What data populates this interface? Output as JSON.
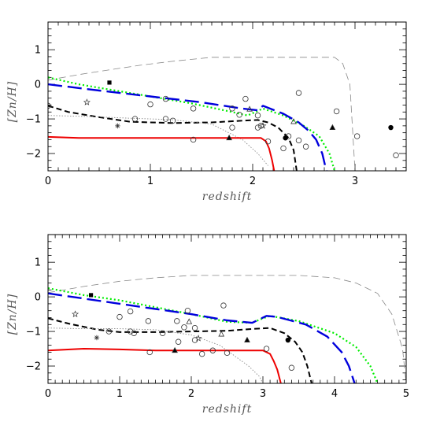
{
  "chart_data": [
    {
      "type": "line",
      "xlabel": "redshift",
      "ylabel": "[Zn/H]",
      "xlim": [
        0,
        3.5
      ],
      "ylim": [
        -2.5,
        1.8
      ],
      "x_ticks": [
        0,
        1,
        2,
        3
      ],
      "y_ticks": [
        1,
        0,
        -1,
        -2
      ],
      "x_minor_step": 0.1,
      "y_minor_step": 0.2,
      "grid": false,
      "series": [
        {
          "style": "thin-dash",
          "color": "#888888",
          "x": [
            0,
            0.3,
            0.6,
            0.9,
            1.2,
            1.6,
            2.0,
            2.4,
            2.6,
            2.8,
            2.88,
            2.95,
            3.0
          ],
          "y": [
            0.12,
            0.28,
            0.42,
            0.55,
            0.66,
            0.78,
            0.78,
            0.78,
            0.78,
            0.78,
            0.6,
            0.0,
            -2.5
          ]
        },
        {
          "style": "green-dot",
          "color": "#00ee00",
          "x": [
            0,
            0.3,
            0.7,
            1.0,
            1.4,
            1.8,
            1.95,
            2.1,
            2.3,
            2.5,
            2.65,
            2.75,
            2.8
          ],
          "y": [
            0.2,
            0.0,
            -0.2,
            -0.35,
            -0.55,
            -0.8,
            -0.9,
            -0.7,
            -0.9,
            -1.2,
            -1.5,
            -2.0,
            -2.5
          ]
        },
        {
          "style": "blue-longdash",
          "color": "#0000dd",
          "x": [
            0,
            0.5,
            1.0,
            1.5,
            1.9,
            2.05,
            2.1,
            2.3,
            2.45,
            2.55,
            2.62,
            2.68,
            2.72
          ],
          "y": [
            0.0,
            -0.18,
            -0.35,
            -0.52,
            -0.7,
            -0.75,
            -0.62,
            -0.85,
            -1.1,
            -1.35,
            -1.6,
            -2.0,
            -2.5
          ]
        },
        {
          "style": "black-dash",
          "color": "#000000",
          "x": [
            0,
            0.2,
            0.5,
            0.8,
            1.2,
            1.6,
            1.9,
            2.05,
            2.15,
            2.25,
            2.35,
            2.4,
            2.43
          ],
          "y": [
            -0.62,
            -0.8,
            -0.95,
            -1.08,
            -1.12,
            -1.1,
            -1.05,
            -1.03,
            -1.1,
            -1.25,
            -1.55,
            -1.9,
            -2.5
          ]
        },
        {
          "style": "grey-dot",
          "color": "#888888",
          "x": [
            0,
            0.4,
            0.8,
            1.2,
            1.6,
            1.9,
            2.05,
            2.15
          ],
          "y": [
            -0.9,
            -0.93,
            -0.98,
            -1.02,
            -1.15,
            -1.6,
            -2.0,
            -2.35
          ]
        },
        {
          "style": "red-solid",
          "color": "#ee0000",
          "x": [
            0,
            0.3,
            0.8,
            1.3,
            1.8,
            2.0,
            2.08,
            2.13,
            2.16,
            2.19,
            2.21
          ],
          "y": [
            -1.52,
            -1.55,
            -1.55,
            -1.55,
            -1.55,
            -1.55,
            -1.55,
            -1.65,
            -1.85,
            -2.2,
            -2.5
          ]
        }
      ],
      "points": [
        {
          "marker": "square",
          "x": 0.6,
          "y": 0.05
        },
        {
          "marker": "star",
          "x": 0.38,
          "y": -0.52
        },
        {
          "marker": "asterisk",
          "x": 0.68,
          "y": -1.2
        },
        {
          "marker": "circle-open",
          "x": 0.0,
          "y": -0.62
        },
        {
          "marker": "circle-open",
          "x": 0.85,
          "y": -1.0
        },
        {
          "marker": "circle-open",
          "x": 1.0,
          "y": -0.58
        },
        {
          "marker": "circle-open",
          "x": 1.15,
          "y": -0.42
        },
        {
          "marker": "circle-open",
          "x": 1.15,
          "y": -1.0
        },
        {
          "marker": "circle-open",
          "x": 1.22,
          "y": -1.05
        },
        {
          "marker": "circle-open",
          "x": 1.42,
          "y": -0.7
        },
        {
          "marker": "circle-open",
          "x": 1.42,
          "y": -1.6
        },
        {
          "marker": "circle-open",
          "x": 1.8,
          "y": -0.7
        },
        {
          "marker": "circle-open",
          "x": 1.8,
          "y": -1.25
        },
        {
          "marker": "circle-open",
          "x": 1.87,
          "y": -0.88
        },
        {
          "marker": "circle-open",
          "x": 1.93,
          "y": -0.42
        },
        {
          "marker": "circle-open",
          "x": 2.05,
          "y": -0.9
        },
        {
          "marker": "circle-open",
          "x": 2.05,
          "y": -1.25
        },
        {
          "marker": "circle-open",
          "x": 2.08,
          "y": -1.2
        },
        {
          "marker": "circle-open",
          "x": 2.15,
          "y": -1.65
        },
        {
          "marker": "circle-open",
          "x": 2.3,
          "y": -1.85
        },
        {
          "marker": "circle-open",
          "x": 2.35,
          "y": -1.5
        },
        {
          "marker": "circle-open",
          "x": 2.45,
          "y": -0.25
        },
        {
          "marker": "circle-open",
          "x": 2.45,
          "y": -1.62
        },
        {
          "marker": "circle-open",
          "x": 2.52,
          "y": -1.8
        },
        {
          "marker": "circle-open",
          "x": 2.82,
          "y": -0.78
        },
        {
          "marker": "circle-open",
          "x": 3.02,
          "y": -1.5
        },
        {
          "marker": "circle-open",
          "x": 3.4,
          "y": -2.05
        },
        {
          "marker": "triangle-open",
          "x": 1.97,
          "y": -0.72
        },
        {
          "marker": "triangle-open",
          "x": 2.4,
          "y": -1.08
        },
        {
          "marker": "triangle-filled",
          "x": 1.77,
          "y": -1.55
        },
        {
          "marker": "triangle-filled",
          "x": 2.78,
          "y": -1.25
        },
        {
          "marker": "circle-filled",
          "x": 3.35,
          "y": -1.25
        },
        {
          "marker": "circle-filled",
          "x": 2.32,
          "y": -1.55
        },
        {
          "marker": "star",
          "x": 2.1,
          "y": -1.2
        }
      ]
    },
    {
      "type": "line",
      "xlabel": "redshift",
      "ylabel": "[Zn/H]",
      "xlim": [
        0,
        5
      ],
      "ylim": [
        -2.5,
        1.8
      ],
      "x_ticks": [
        0,
        1,
        2,
        3,
        4,
        5
      ],
      "y_ticks": [
        1,
        0,
        -1,
        -2
      ],
      "x_minor_step": 0.1,
      "y_minor_step": 0.2,
      "grid": false,
      "series": [
        {
          "style": "thin-dash",
          "color": "#888888",
          "x": [
            0,
            0.5,
            1.0,
            1.5,
            2.0,
            2.5,
            3.0,
            3.5,
            4.0,
            4.3,
            4.6,
            4.8,
            4.95,
            5.0
          ],
          "y": [
            0.12,
            0.3,
            0.45,
            0.55,
            0.62,
            0.62,
            0.62,
            0.62,
            0.55,
            0.4,
            0.1,
            -0.5,
            -1.5,
            -2.5
          ]
        },
        {
          "style": "green-dot",
          "color": "#00ee00",
          "x": [
            0,
            0.5,
            1.0,
            1.5,
            2.0,
            2.5,
            2.85,
            3.0,
            3.1,
            3.5,
            4.0,
            4.3,
            4.5,
            4.6
          ],
          "y": [
            0.25,
            0.05,
            -0.1,
            -0.3,
            -0.5,
            -0.72,
            -0.75,
            -0.62,
            -0.55,
            -0.7,
            -1.05,
            -1.45,
            -2.0,
            -2.5
          ]
        },
        {
          "style": "blue-longdash",
          "color": "#0000dd",
          "x": [
            0,
            0.5,
            1.0,
            1.5,
            2.0,
            2.5,
            2.85,
            3.05,
            3.2,
            3.6,
            3.9,
            4.1,
            4.2,
            4.28
          ],
          "y": [
            0.1,
            -0.05,
            -0.2,
            -0.35,
            -0.5,
            -0.68,
            -0.75,
            -0.55,
            -0.58,
            -0.8,
            -1.15,
            -1.6,
            -2.0,
            -2.5
          ]
        },
        {
          "style": "black-dash",
          "color": "#000000",
          "x": [
            0,
            0.3,
            0.7,
            1.0,
            1.5,
            2.0,
            2.5,
            2.9,
            3.1,
            3.3,
            3.45,
            3.55,
            3.62,
            3.68
          ],
          "y": [
            -0.62,
            -0.78,
            -0.95,
            -1.02,
            -1.02,
            -1.0,
            -0.98,
            -0.92,
            -0.9,
            -1.05,
            -1.3,
            -1.6,
            -2.0,
            -2.5
          ]
        },
        {
          "style": "grey-dot",
          "color": "#888888",
          "x": [
            0,
            0.5,
            1.0,
            1.5,
            2.0,
            2.4,
            2.6,
            2.8,
            2.95,
            3.0
          ],
          "y": [
            -0.9,
            -0.92,
            -0.92,
            -0.95,
            -1.1,
            -1.4,
            -1.7,
            -2.0,
            -2.3,
            -2.5
          ]
        },
        {
          "style": "red-solid",
          "color": "#ee0000",
          "x": [
            0,
            0.5,
            1.0,
            1.5,
            2.0,
            2.5,
            2.8,
            3.0,
            3.1,
            3.15,
            3.2,
            3.25
          ],
          "y": [
            -1.55,
            -1.5,
            -1.52,
            -1.55,
            -1.55,
            -1.55,
            -1.55,
            -1.55,
            -1.65,
            -1.85,
            -2.1,
            -2.5
          ]
        }
      ],
      "points": [
        {
          "marker": "square",
          "x": 0.6,
          "y": 0.05
        },
        {
          "marker": "star",
          "x": 0.38,
          "y": -0.5
        },
        {
          "marker": "asterisk",
          "x": 0.68,
          "y": -1.18
        },
        {
          "marker": "circle-open",
          "x": 0.85,
          "y": -1.0
        },
        {
          "marker": "circle-open",
          "x": 1.0,
          "y": -0.58
        },
        {
          "marker": "circle-open",
          "x": 1.15,
          "y": -0.42
        },
        {
          "marker": "circle-open",
          "x": 1.15,
          "y": -1.0
        },
        {
          "marker": "circle-open",
          "x": 1.2,
          "y": -1.05
        },
        {
          "marker": "circle-open",
          "x": 1.4,
          "y": -0.7
        },
        {
          "marker": "circle-open",
          "x": 1.42,
          "y": -1.6
        },
        {
          "marker": "circle-open",
          "x": 1.6,
          "y": -1.05
        },
        {
          "marker": "circle-open",
          "x": 1.8,
          "y": -0.7
        },
        {
          "marker": "circle-open",
          "x": 1.82,
          "y": -1.3
        },
        {
          "marker": "circle-open",
          "x": 1.9,
          "y": -0.88
        },
        {
          "marker": "circle-open",
          "x": 1.95,
          "y": -0.4
        },
        {
          "marker": "circle-open",
          "x": 2.05,
          "y": -0.9
        },
        {
          "marker": "circle-open",
          "x": 2.05,
          "y": -1.25
        },
        {
          "marker": "circle-open",
          "x": 2.15,
          "y": -1.65
        },
        {
          "marker": "circle-open",
          "x": 2.3,
          "y": -1.55
        },
        {
          "marker": "circle-open",
          "x": 2.45,
          "y": -0.25
        },
        {
          "marker": "circle-open",
          "x": 2.5,
          "y": -1.62
        },
        {
          "marker": "circle-open",
          "x": 3.05,
          "y": -1.5
        },
        {
          "marker": "circle-open",
          "x": 3.4,
          "y": -2.05
        },
        {
          "marker": "triangle-open",
          "x": 1.97,
          "y": -0.72
        },
        {
          "marker": "triangle-open",
          "x": 2.42,
          "y": -1.08
        },
        {
          "marker": "triangle-filled",
          "x": 1.77,
          "y": -1.55
        },
        {
          "marker": "triangle-filled",
          "x": 2.78,
          "y": -1.25
        },
        {
          "marker": "circle-filled",
          "x": 3.35,
          "y": -1.25
        },
        {
          "marker": "star",
          "x": 2.1,
          "y": -1.2
        }
      ]
    }
  ]
}
